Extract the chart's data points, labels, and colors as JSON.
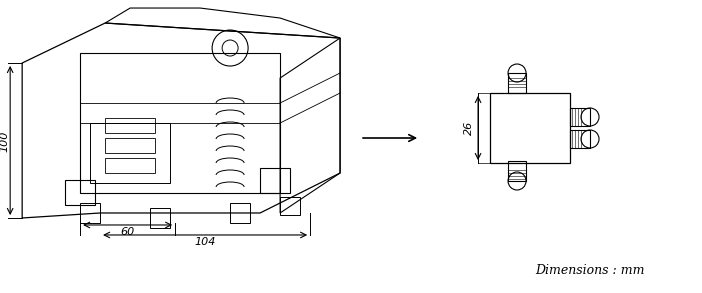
{
  "bg_color": "#ffffff",
  "fig_width": 7.02,
  "fig_height": 2.93,
  "dpi": 100,
  "dim_label_100": "100",
  "dim_label_60": "60",
  "dim_label_104": "104",
  "dim_label_26": "26",
  "dim_text": "Dimensions : mm",
  "arrow_color": "#000000",
  "line_color": "#000000",
  "dim_fontsize": 8,
  "text_fontsize": 9
}
